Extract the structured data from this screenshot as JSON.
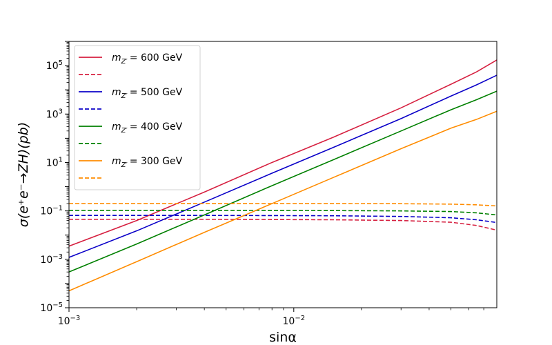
{
  "chart_data": {
    "type": "line",
    "title": "",
    "xlabel": "sinα",
    "ylabel": "σ(e⁺e⁻→ZH)(pb)",
    "xscale": "log",
    "yscale": "log",
    "xlim": [
      0.001,
      0.08
    ],
    "ylim": [
      1e-05,
      1000000
    ],
    "grid": false,
    "legend_position": "top-left",
    "x_ticks": [
      {
        "value": 0.001,
        "base": "10",
        "exp": "−3"
      },
      {
        "value": 0.01,
        "base": "10",
        "exp": "−2"
      }
    ],
    "y_ticks": [
      {
        "value": 1e-05,
        "base": "10",
        "exp": "−5"
      },
      {
        "value": 0.001,
        "base": "10",
        "exp": "−3"
      },
      {
        "value": 0.1,
        "base": "10",
        "exp": "−1"
      },
      {
        "value": 10,
        "base": "10",
        "exp": "1"
      },
      {
        "value": 1000,
        "base": "10",
        "exp": "3"
      },
      {
        "value": 100000,
        "base": "10",
        "exp": "5"
      }
    ],
    "x": [
      0.001,
      0.002,
      0.004,
      0.008,
      0.015,
      0.03,
      0.05,
      0.065,
      0.08
    ],
    "series": [
      {
        "name": "m_Z' = 600 GeV",
        "mass_label": "= 600 GeV",
        "style": "solid",
        "color": "#d62040",
        "values": [
          0.0035,
          0.04,
          0.6,
          10,
          110,
          1800,
          17000,
          55000,
          170000
        ]
      },
      {
        "name": "",
        "style": "dashed",
        "color": "#d62040",
        "values": [
          0.045,
          0.045,
          0.045,
          0.044,
          0.043,
          0.04,
          0.034,
          0.025,
          0.016
        ]
      },
      {
        "name": "m_Z' = 500 GeV",
        "mass_label": "= 500 GeV",
        "style": "solid",
        "color": "#0a00c8",
        "values": [
          0.0012,
          0.015,
          0.23,
          3.6,
          42,
          650,
          5500,
          16000,
          40000
        ]
      },
      {
        "name": "",
        "style": "dashed",
        "color": "#0a00c8",
        "values": [
          0.065,
          0.065,
          0.065,
          0.064,
          0.063,
          0.059,
          0.052,
          0.043,
          0.033
        ]
      },
      {
        "name": "m_Z' = 400 GeV",
        "mass_label": "= 400 GeV",
        "style": "solid",
        "color": "#008000",
        "values": [
          0.0003,
          0.0043,
          0.068,
          1.1,
          13,
          200,
          1500,
          3900,
          8800
        ]
      },
      {
        "name": "",
        "style": "dashed",
        "color": "#008000",
        "values": [
          0.105,
          0.105,
          0.105,
          0.104,
          0.103,
          0.1,
          0.094,
          0.083,
          0.068
        ]
      },
      {
        "name": "m_Z' = 300 GeV",
        "mass_label": "= 300 GeV",
        "style": "solid",
        "color": "#ff8c00",
        "values": [
          5e-05,
          0.0008,
          0.013,
          0.2,
          2.4,
          37,
          260,
          600,
          1300
        ]
      },
      {
        "name": "",
        "style": "dashed",
        "color": "#ff8c00",
        "values": [
          0.2,
          0.2,
          0.2,
          0.2,
          0.2,
          0.198,
          0.19,
          0.178,
          0.16
        ]
      }
    ]
  }
}
